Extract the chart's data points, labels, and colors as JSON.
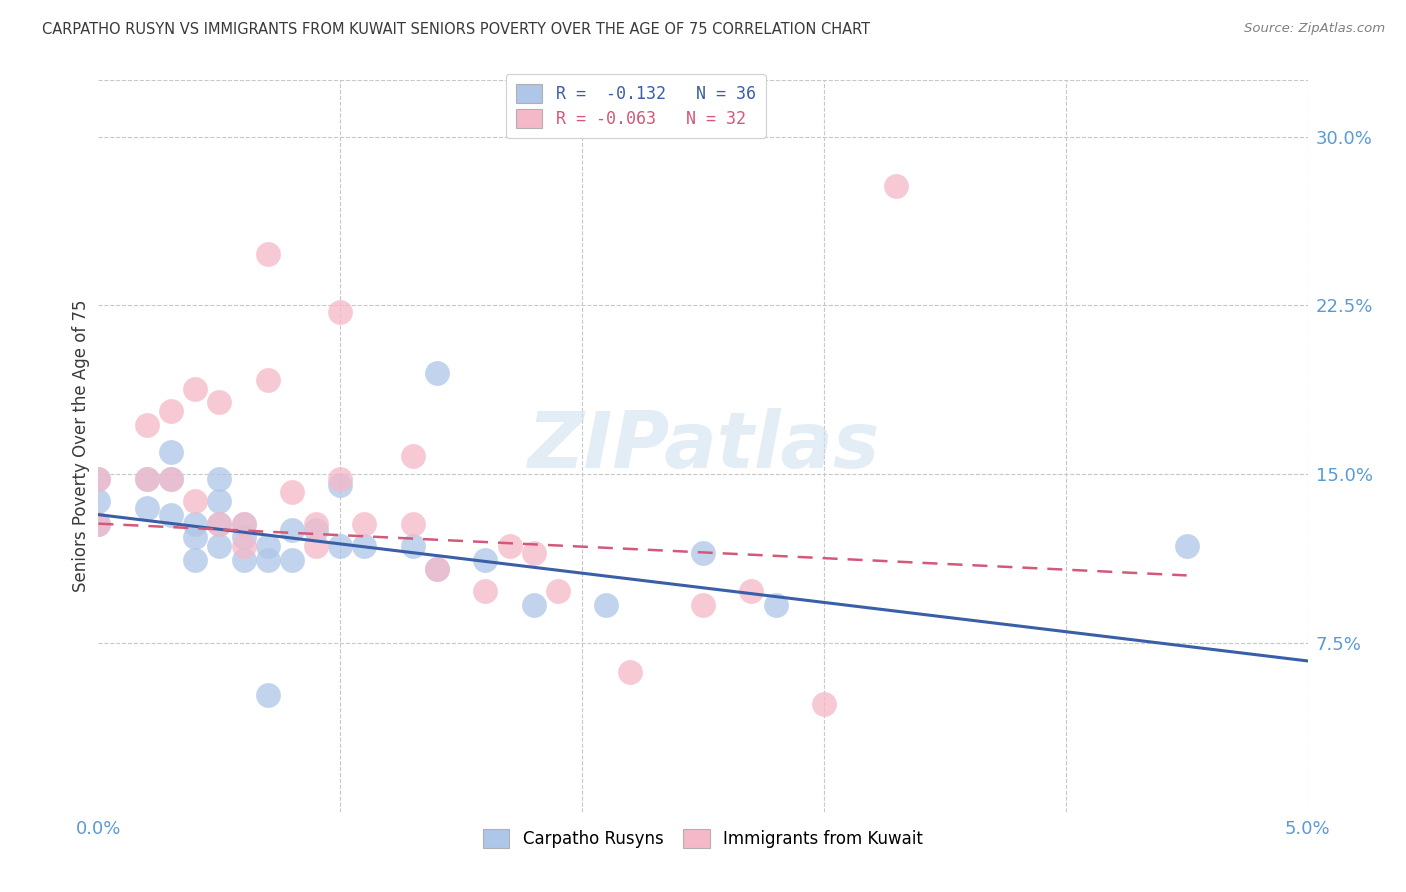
{
  "title": "CARPATHO RUSYN VS IMMIGRANTS FROM KUWAIT SENIORS POVERTY OVER THE AGE OF 75 CORRELATION CHART",
  "source": "Source: ZipAtlas.com",
  "ylabel": "Seniors Poverty Over the Age of 75",
  "xmin": 0.0,
  "xmax": 0.05,
  "ymin": 0.0,
  "ymax": 0.325,
  "yticks": [
    0.075,
    0.15,
    0.225,
    0.3
  ],
  "ytick_labels": [
    "7.5%",
    "15.0%",
    "22.5%",
    "30.0%"
  ],
  "xticks": [
    0.0,
    0.05
  ],
  "xtick_labels": [
    "0.0%",
    "5.0%"
  ],
  "legend_blue_label": "Carpatho Rusyns",
  "legend_pink_label": "Immigrants from Kuwait",
  "legend_blue_r": "R =  -0.132",
  "legend_blue_n": "N = 36",
  "legend_pink_r": "R = -0.063",
  "legend_pink_n": "N = 32",
  "blue_color": "#aec6e8",
  "pink_color": "#f5b8c8",
  "blue_line_color": "#3a5fa8",
  "pink_line_color": "#d45878",
  "axis_color": "#5b9bd5",
  "title_color": "#3a3a3a",
  "source_color": "#808080",
  "watermark": "ZIPatlas",
  "blue_line_x": [
    0.0,
    0.05
  ],
  "blue_line_y": [
    0.132,
    0.067
  ],
  "pink_line_x": [
    0.0,
    0.045
  ],
  "pink_line_y": [
    0.128,
    0.105
  ],
  "blue_scatter_x": [
    0.0,
    0.0,
    0.0,
    0.002,
    0.002,
    0.003,
    0.003,
    0.003,
    0.004,
    0.004,
    0.004,
    0.005,
    0.005,
    0.005,
    0.005,
    0.006,
    0.006,
    0.006,
    0.007,
    0.007,
    0.008,
    0.008,
    0.009,
    0.01,
    0.01,
    0.011,
    0.013,
    0.014,
    0.014,
    0.016,
    0.018,
    0.021,
    0.025,
    0.028,
    0.045,
    0.007
  ],
  "blue_scatter_y": [
    0.148,
    0.138,
    0.128,
    0.148,
    0.135,
    0.16,
    0.148,
    0.132,
    0.128,
    0.122,
    0.112,
    0.148,
    0.138,
    0.128,
    0.118,
    0.128,
    0.122,
    0.112,
    0.118,
    0.112,
    0.125,
    0.112,
    0.125,
    0.145,
    0.118,
    0.118,
    0.118,
    0.195,
    0.108,
    0.112,
    0.092,
    0.092,
    0.115,
    0.092,
    0.118,
    0.052
  ],
  "pink_scatter_x": [
    0.0,
    0.0,
    0.002,
    0.002,
    0.003,
    0.003,
    0.004,
    0.004,
    0.005,
    0.005,
    0.006,
    0.006,
    0.007,
    0.007,
    0.008,
    0.009,
    0.009,
    0.01,
    0.011,
    0.013,
    0.013,
    0.014,
    0.016,
    0.017,
    0.018,
    0.019,
    0.022,
    0.025,
    0.027,
    0.03,
    0.033,
    0.01
  ],
  "pink_scatter_y": [
    0.148,
    0.128,
    0.172,
    0.148,
    0.178,
    0.148,
    0.188,
    0.138,
    0.182,
    0.128,
    0.128,
    0.118,
    0.248,
    0.192,
    0.142,
    0.128,
    0.118,
    0.148,
    0.128,
    0.158,
    0.128,
    0.108,
    0.098,
    0.118,
    0.115,
    0.098,
    0.062,
    0.092,
    0.098,
    0.048,
    0.278,
    0.222
  ]
}
